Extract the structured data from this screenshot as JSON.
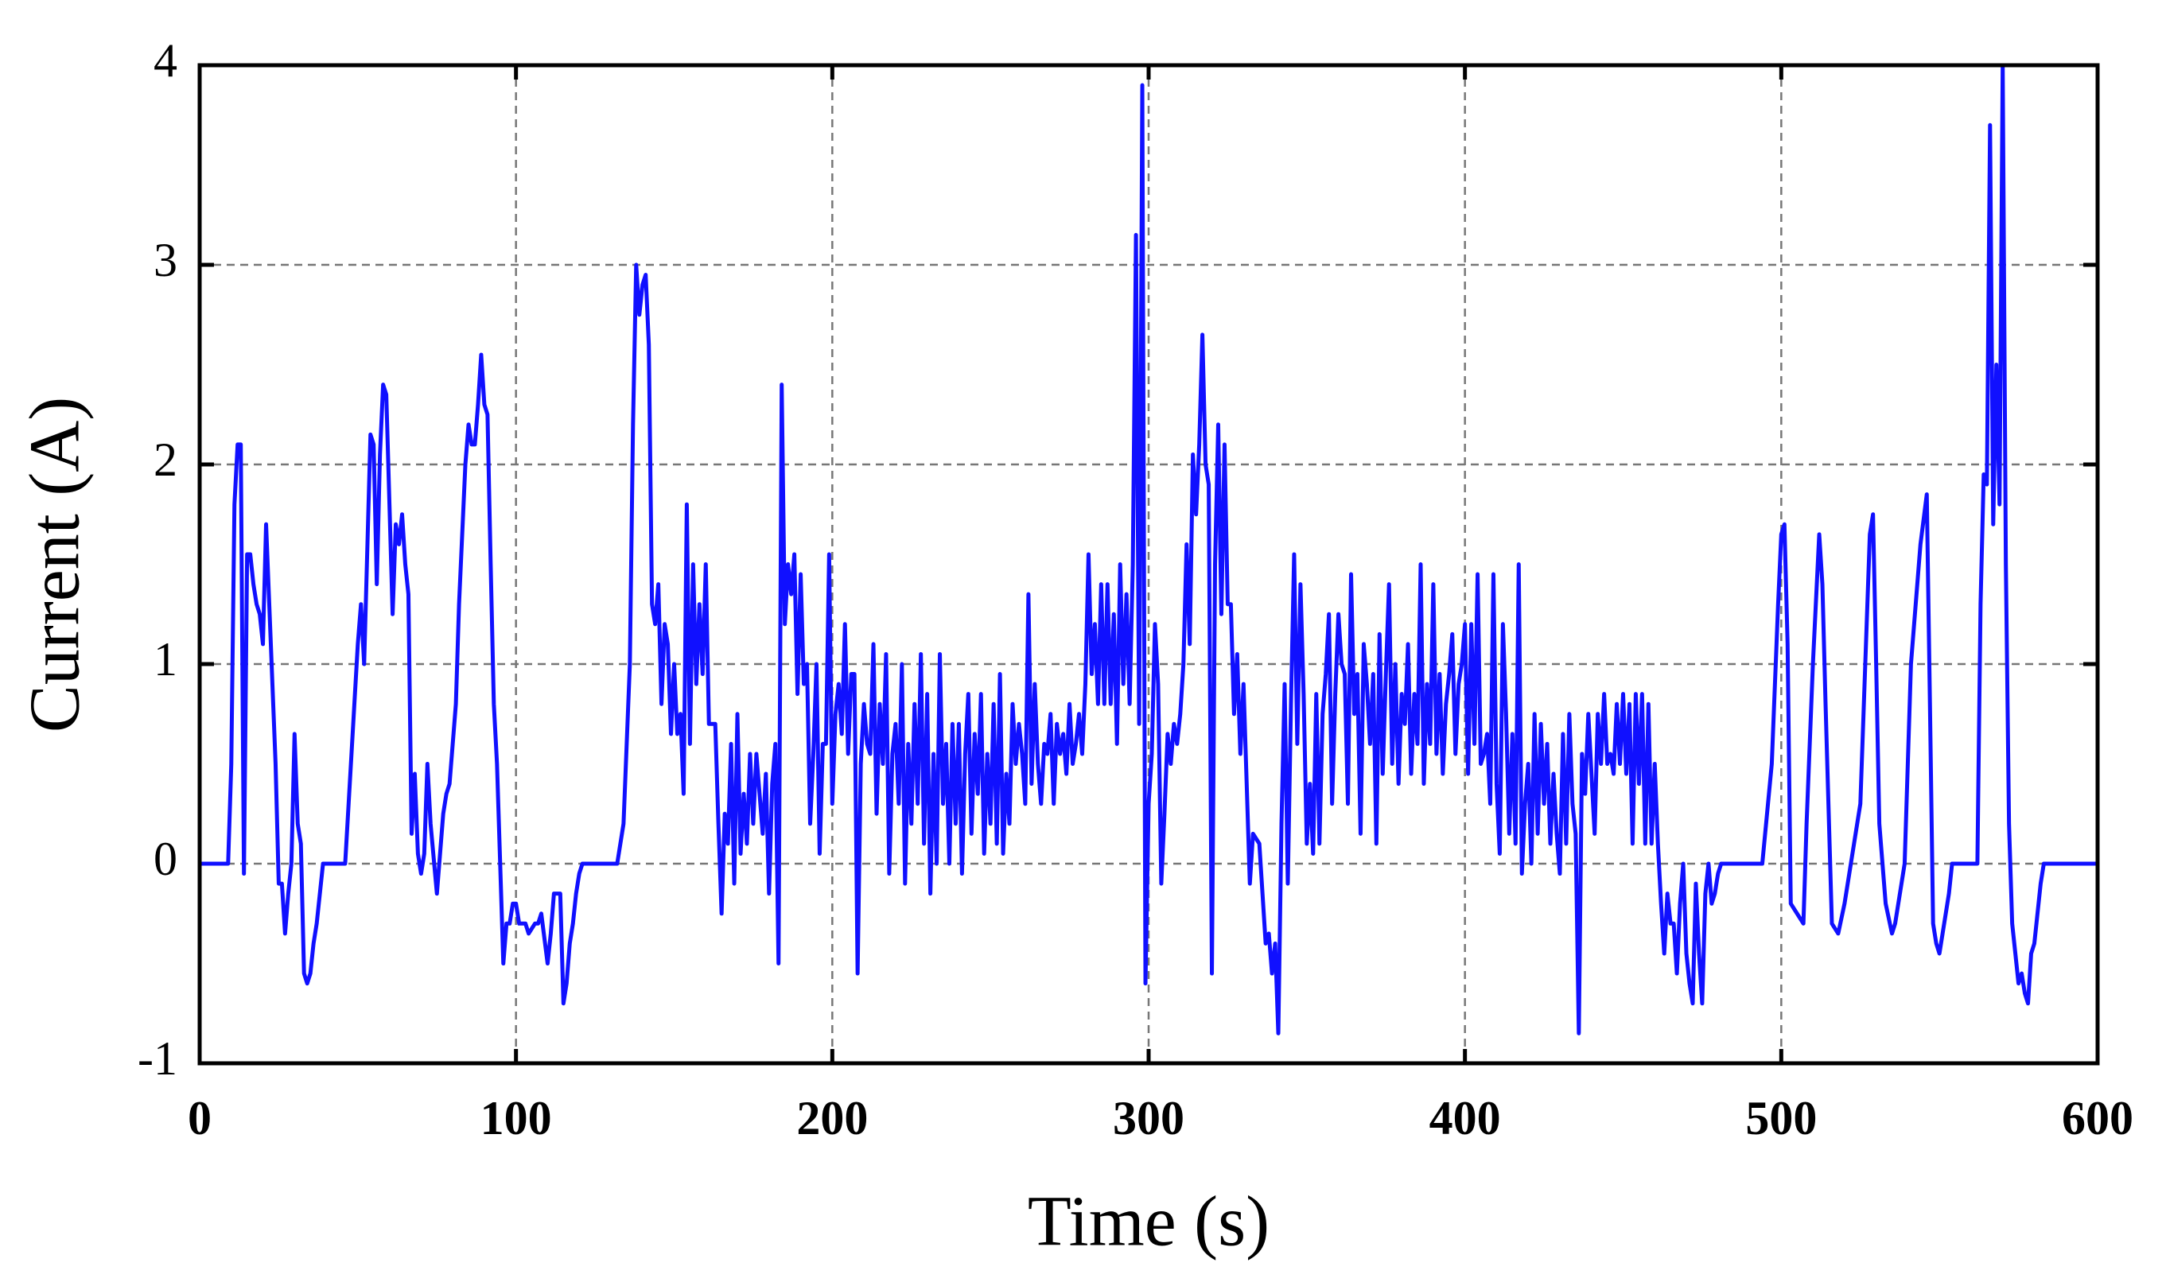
{
  "chart_data": {
    "type": "line",
    "xlabel": "Time (s)",
    "ylabel": "Current (A)",
    "color": "#1010ff",
    "grid": true,
    "xlim": [
      0,
      600
    ],
    "ylim": [
      -1,
      4
    ],
    "xticks": [
      0,
      100,
      200,
      300,
      400,
      500,
      600
    ],
    "yticks": [
      -1,
      0,
      1,
      2,
      3,
      4
    ],
    "x": [
      0,
      9,
      10,
      11,
      12,
      13,
      14,
      15,
      16,
      17,
      18,
      19,
      20,
      21,
      22,
      24,
      25,
      26,
      27,
      28,
      29,
      30,
      31,
      32,
      33,
      34,
      35,
      36,
      37,
      39,
      46,
      50,
      51,
      52,
      54,
      55,
      56,
      57,
      58,
      59,
      60,
      61,
      62,
      63,
      64,
      65,
      66,
      67,
      68,
      69,
      70,
      71,
      72,
      73,
      75,
      77,
      78,
      79,
      81,
      82,
      84,
      85,
      86,
      87,
      88,
      89,
      90,
      91,
      92,
      93,
      94,
      96,
      97,
      98,
      99,
      100,
      101,
      103,
      104,
      106,
      107,
      108,
      110,
      111,
      112,
      114,
      115,
      116,
      117,
      118,
      119,
      120,
      121,
      132,
      134,
      136,
      137,
      138,
      139,
      140,
      141,
      142,
      143,
      144,
      145,
      146,
      147,
      148,
      149,
      150,
      151,
      152,
      153,
      154,
      155,
      156,
      157,
      158,
      159,
      160,
      161,
      163,
      164,
      165,
      166,
      167,
      168,
      169,
      170,
      171,
      172,
      173,
      174,
      175,
      176,
      177,
      178,
      179,
      180,
      181,
      182,
      183,
      184,
      185,
      186,
      187,
      188,
      189,
      190,
      191,
      192,
      193,
      194,
      195,
      196,
      197,
      198,
      199,
      200,
      201,
      202,
      203,
      204,
      205,
      206,
      207,
      208,
      209,
      210,
      211,
      212,
      213,
      214,
      215,
      216,
      217,
      218,
      219,
      220,
      221,
      222,
      223,
      224,
      225,
      226,
      227,
      228,
      229,
      230,
      231,
      232,
      233,
      234,
      235,
      236,
      237,
      238,
      239,
      240,
      241,
      242,
      243,
      244,
      245,
      246,
      247,
      248,
      249,
      250,
      251,
      252,
      253,
      254,
      255,
      256,
      257,
      258,
      259,
      260,
      261,
      262,
      263,
      264,
      265,
      266,
      267,
      268,
      269,
      270,
      271,
      272,
      273,
      274,
      275,
      276,
      277,
      278,
      279,
      280,
      281,
      282,
      283,
      284,
      285,
      286,
      287,
      288,
      289,
      290,
      291,
      292,
      293,
      294,
      295,
      296,
      297,
      298,
      299,
      300,
      301,
      302,
      303,
      304,
      305,
      306,
      307,
      308,
      309,
      310,
      311,
      312,
      313,
      314,
      315,
      316,
      317,
      318,
      319,
      320,
      321,
      322,
      323,
      324,
      325,
      326,
      327,
      328,
      329,
      330,
      332,
      333,
      335,
      337,
      338,
      339,
      340,
      341,
      342,
      343,
      344,
      345,
      346,
      347,
      348,
      349,
      350,
      351,
      352,
      353,
      354,
      355,
      356,
      357,
      358,
      359,
      360,
      361,
      362,
      363,
      364,
      365,
      366,
      367,
      368,
      369,
      370,
      371,
      372,
      373,
      374,
      375,
      376,
      377,
      378,
      379,
      380,
      381,
      382,
      383,
      384,
      385,
      386,
      387,
      388,
      389,
      390,
      391,
      392,
      393,
      394,
      395,
      396,
      397,
      398,
      399,
      400,
      401,
      402,
      403,
      404,
      405,
      406,
      407,
      408,
      409,
      410,
      411,
      412,
      413,
      414,
      415,
      416,
      417,
      418,
      419,
      420,
      421,
      422,
      423,
      424,
      425,
      426,
      427,
      428,
      429,
      430,
      431,
      432,
      433,
      434,
      435,
      436,
      437,
      438,
      439,
      440,
      441,
      442,
      443,
      444,
      445,
      446,
      447,
      448,
      449,
      450,
      451,
      452,
      453,
      454,
      455,
      456,
      457,
      458,
      459,
      460,
      461,
      462,
      463,
      464,
      465,
      466,
      467,
      468,
      469,
      470,
      471,
      472,
      473,
      474,
      475,
      476,
      477,
      478,
      479,
      480,
      481,
      494,
      497,
      499,
      500,
      501,
      502,
      503,
      505,
      507,
      508,
      510,
      512,
      513,
      514,
      516,
      518,
      520,
      522,
      523,
      525,
      527,
      528,
      529,
      530,
      531,
      533,
      535,
      536,
      538,
      539,
      541,
      542,
      544,
      546,
      547,
      548,
      549,
      550,
      551,
      553,
      554,
      562,
      563,
      564,
      565,
      566,
      567,
      568,
      569,
      570,
      571,
      572,
      573,
      574,
      575,
      576,
      577,
      578,
      579,
      580,
      582,
      583,
      600
    ],
    "values": [
      0,
      0,
      0.5,
      1.8,
      2.1,
      2.1,
      -0.05,
      1.55,
      1.55,
      1.4,
      1.3,
      1.25,
      1.1,
      1.7,
      1.3,
      0.5,
      -0.1,
      -0.1,
      -0.35,
      -0.15,
      0,
      0.65,
      0.2,
      0.1,
      -0.55,
      -0.6,
      -0.55,
      -0.4,
      -0.3,
      0,
      0,
      1.1,
      1.3,
      1,
      2.15,
      2.1,
      1.4,
      2.05,
      2.4,
      2.35,
      1.8,
      1.25,
      1.7,
      1.6,
      1.75,
      1.5,
      1.35,
      0.15,
      0.45,
      0.05,
      -0.05,
      0.05,
      0.5,
      0.2,
      -0.15,
      0.25,
      0.35,
      0.4,
      0.8,
      1.3,
      2,
      2.2,
      2.1,
      2.1,
      2.3,
      2.55,
      2.3,
      2.25,
      1.5,
      0.8,
      0.5,
      -0.5,
      -0.3,
      -0.3,
      -0.2,
      -0.2,
      -0.3,
      -0.3,
      -0.35,
      -0.3,
      -0.3,
      -0.25,
      -0.5,
      -0.35,
      -0.15,
      -0.15,
      -0.7,
      -0.6,
      -0.4,
      -0.3,
      -0.15,
      -0.05,
      0,
      0,
      0.2,
      1,
      2.2,
      3,
      2.75,
      2.9,
      2.95,
      2.6,
      1.3,
      1.2,
      1.4,
      0.8,
      1.2,
      1.1,
      0.65,
      1,
      0.65,
      0.75,
      0.35,
      1.8,
      0.6,
      1.5,
      0.9,
      1.3,
      0.95,
      1.5,
      0.7,
      0.7,
      0.2,
      -0.25,
      0.25,
      0.1,
      0.6,
      -0.1,
      0.75,
      0.05,
      0.35,
      0.1,
      0.55,
      0.2,
      0.55,
      0.35,
      0.15,
      0.45,
      -0.15,
      0.4,
      0.6,
      -0.5,
      2.4,
      1.2,
      1.5,
      1.35,
      1.55,
      0.85,
      1.45,
      0.9,
      1,
      0.2,
      0.55,
      1,
      0.05,
      0.6,
      0.6,
      1.55,
      0.3,
      0.75,
      0.9,
      0.65,
      1.2,
      0.55,
      0.95,
      0.95,
      -0.55,
      0.5,
      0.8,
      0.6,
      0.55,
      1.1,
      0.25,
      0.8,
      0.5,
      1.05,
      -0.05,
      0.55,
      0.7,
      0.3,
      1,
      -0.1,
      0.6,
      0.2,
      0.8,
      0.3,
      1.05,
      0.1,
      0.85,
      -0.15,
      0.55,
      0,
      1.05,
      0.3,
      0.6,
      0,
      0.7,
      0.2,
      0.7,
      -0.05,
      0.55,
      0.85,
      0.15,
      0.65,
      0.35,
      0.85,
      0.05,
      0.55,
      0.2,
      0.8,
      0.1,
      0.95,
      0.05,
      0.45,
      0.2,
      0.8,
      0.5,
      0.7,
      0.55,
      0.3,
      1.35,
      0.4,
      0.9,
      0.5,
      0.3,
      0.6,
      0.55,
      0.75,
      0.3,
      0.7,
      0.55,
      0.65,
      0.45,
      0.8,
      0.5,
      0.6,
      0.75,
      0.55,
      0.9,
      1.55,
      0.95,
      1.2,
      0.8,
      1.4,
      0.8,
      1.4,
      0.8,
      1.25,
      0.6,
      1.5,
      0.9,
      1.35,
      0.8,
      1.5,
      3.15,
      0.7,
      3.9,
      -0.6,
      0.3,
      0.55,
      1.2,
      0.9,
      -0.1,
      0.25,
      0.65,
      0.5,
      0.7,
      0.6,
      0.75,
      1,
      1.6,
      1.1,
      2.05,
      1.75,
      2.1,
      2.65,
      2,
      1.9,
      -0.55,
      1.5,
      2.2,
      1.25,
      2.1,
      1.3,
      1.3,
      0.75,
      1.05,
      0.55,
      0.9,
      -0.1,
      0.15,
      0.1,
      -0.4,
      -0.35,
      -0.55,
      -0.4,
      -0.85,
      0.2,
      0.9,
      -0.1,
      0.8,
      1.55,
      0.6,
      1.4,
      0.85,
      0.1,
      0.4,
      0.05,
      0.85,
      0.1,
      0.75,
      0.95,
      1.25,
      0.3,
      0.85,
      1.25,
      1,
      0.95,
      0.3,
      1.45,
      0.75,
      0.95,
      0.15,
      1.1,
      0.9,
      0.6,
      0.95,
      0.1,
      1.15,
      0.45,
      0.95,
      1.4,
      0.5,
      1,
      0.4,
      0.85,
      0.7,
      1.1,
      0.45,
      0.85,
      0.6,
      1.5,
      0.4,
      0.9,
      0.6,
      1.4,
      0.55,
      0.95,
      0.45,
      0.8,
      0.95,
      1.15,
      0.55,
      0.9,
      1,
      1.2,
      0.45,
      1.2,
      0.6,
      1.45,
      0.5,
      0.55,
      0.65,
      0.3,
      1.45,
      0.4,
      0.05,
      1.2,
      0.75,
      0.15,
      0.65,
      0.1,
      1.5,
      -0.05,
      0.3,
      0.5,
      0,
      0.75,
      0.15,
      0.7,
      0.3,
      0.6,
      0.1,
      0.45,
      0.15,
      -0.05,
      0.65,
      0.1,
      0.75,
      0.3,
      0.15,
      -0.85,
      0.55,
      0.35,
      0.75,
      0.45,
      0.15,
      0.75,
      0.5,
      0.85,
      0.5,
      0.55,
      0.45,
      0.8,
      0.5,
      0.85,
      0.45,
      0.8,
      0.1,
      0.85,
      0.4,
      0.85,
      0.1,
      0.8,
      0.1,
      0.5,
      0.1,
      -0.2,
      -0.45,
      -0.15,
      -0.3,
      -0.3,
      -0.55,
      -0.2,
      0,
      -0.45,
      -0.6,
      -0.7,
      -0.1,
      -0.45,
      -0.7,
      -0.15,
      0,
      -0.2,
      -0.15,
      -0.05,
      0,
      0,
      0.5,
      1.3,
      1.65,
      1.7,
      1.1,
      -0.2,
      -0.25,
      -0.3,
      0.2,
      1,
      1.65,
      1.4,
      0.8,
      -0.3,
      -0.35,
      -0.2,
      0,
      0.1,
      0.3,
      1.2,
      1.65,
      1.75,
      1,
      0.2,
      -0.2,
      -0.35,
      -0.3,
      -0.1,
      0,
      1,
      1.2,
      1.6,
      1.85,
      0.8,
      -0.3,
      -0.4,
      -0.45,
      -0.35,
      -0.15,
      0,
      0,
      1.3,
      1.95,
      1.9,
      3.7,
      1.7,
      2.5,
      1.8,
      4,
      1.5,
      0.2,
      -0.3,
      -0.45,
      -0.6,
      -0.55,
      -0.65,
      -0.7,
      -0.45,
      -0.4,
      -0.1,
      0,
      0
    ]
  }
}
